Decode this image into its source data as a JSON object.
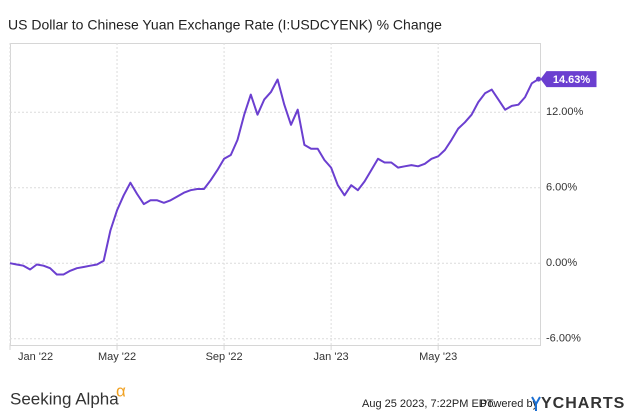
{
  "chart_data": {
    "type": "line",
    "title": "US Dollar to Chinese Yuan Exchange Rate (I:USDCYENK) % Change",
    "categories": [
      "Jan '22",
      null,
      null,
      null,
      null,
      null,
      null,
      null,
      null,
      null,
      null,
      null,
      null,
      null,
      null,
      null,
      "May '22",
      null,
      null,
      null,
      null,
      null,
      null,
      null,
      null,
      null,
      null,
      null,
      null,
      null,
      null,
      null,
      "Sep '22",
      null,
      null,
      null,
      null,
      null,
      null,
      null,
      null,
      null,
      null,
      null,
      null,
      null,
      null,
      null,
      "Jan '23",
      null,
      null,
      null,
      null,
      null,
      null,
      null,
      null,
      null,
      null,
      null,
      null,
      null,
      null,
      null,
      "May '23",
      null,
      null,
      null,
      null,
      null,
      null,
      null,
      null,
      null,
      null,
      null,
      null,
      null,
      null,
      null
    ],
    "series": [
      {
        "name": "US Dollar to Chinese Yuan Exchange Rate (I:USDCYENK) % Change",
        "color": "#6b3fd0",
        "values": [
          0.0,
          -0.1,
          -0.2,
          -0.5,
          -0.1,
          -0.2,
          -0.4,
          -0.9,
          -0.9,
          -0.6,
          -0.4,
          -0.3,
          -0.2,
          -0.1,
          0.2,
          2.6,
          4.2,
          5.4,
          6.4,
          5.5,
          4.7,
          5.0,
          5.0,
          4.8,
          5.0,
          5.3,
          5.6,
          5.8,
          5.9,
          5.9,
          6.6,
          7.4,
          8.3,
          8.6,
          9.8,
          11.8,
          13.4,
          11.8,
          13.0,
          13.6,
          14.6,
          12.6,
          11.0,
          12.2,
          9.4,
          9.1,
          9.1,
          8.2,
          7.6,
          6.2,
          5.4,
          6.2,
          5.8,
          6.5,
          7.4,
          8.3,
          8.0,
          8.0,
          7.6,
          7.7,
          7.8,
          7.7,
          7.9,
          8.3,
          8.5,
          9.0,
          9.8,
          10.7,
          11.2,
          11.8,
          12.8,
          13.5,
          13.8,
          13.0,
          12.2,
          12.5,
          12.6,
          13.2,
          14.3,
          14.63
        ],
        "last_label": "14.63%"
      }
    ],
    "ylim": [
      -6.5,
      17.5
    ],
    "yticks": [
      {
        "value": -6,
        "label": "-6.00%"
      },
      {
        "value": 0,
        "label": "0.00%"
      },
      {
        "value": 6,
        "label": "6.00%"
      },
      {
        "value": 12,
        "label": "12.00%"
      }
    ],
    "grid": true,
    "y_axis_side": "right"
  },
  "footer": {
    "brand": "Seeking Alpha",
    "brand_mark": "α",
    "timestamp": "Aug 25 2023, 7:22PM EDT.",
    "powered_by": "Powered by",
    "provider": "YCHARTS"
  }
}
